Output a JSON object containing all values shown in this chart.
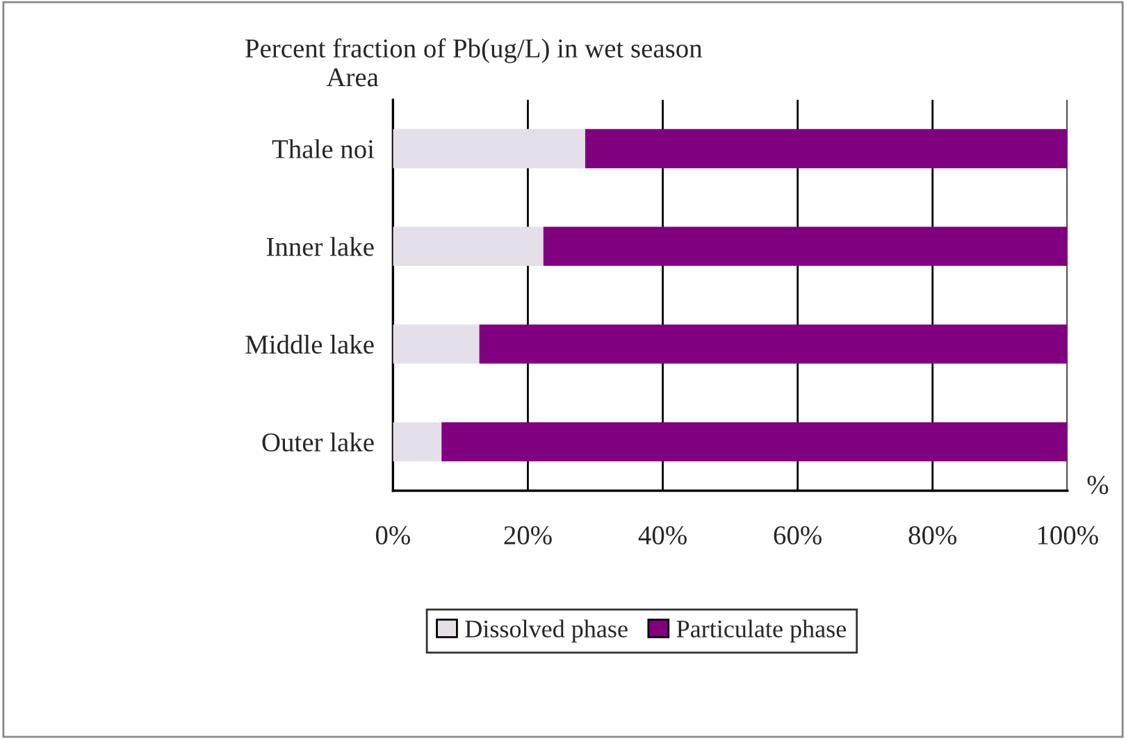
{
  "chart_data": {
    "type": "bar",
    "orientation": "horizontal",
    "stacked": true,
    "title": "Percent fraction of Pb(ug/L) in wet season",
    "ylabel": "Area",
    "xlabel": "%",
    "categories": [
      "Thale noi",
      "Inner lake",
      "Middle lake",
      "Outer lake"
    ],
    "series": [
      {
        "name": "Dissolved phase",
        "color": "#e4dfe8",
        "values": [
          28.5,
          22.3,
          12.8,
          7.2
        ]
      },
      {
        "name": "Particulate phase",
        "color": "#800080",
        "values": [
          71.5,
          77.7,
          87.2,
          92.8
        ]
      }
    ],
    "xlim": [
      0,
      100
    ],
    "xticks": [
      {
        "value": 0,
        "label": "0%"
      },
      {
        "value": 20,
        "label": "20%"
      },
      {
        "value": 40,
        "label": "40%"
      },
      {
        "value": 60,
        "label": "60%"
      },
      {
        "value": 80,
        "label": "80%"
      },
      {
        "value": 100,
        "label": "100%"
      }
    ],
    "grid": "x",
    "legend": "bottom"
  }
}
